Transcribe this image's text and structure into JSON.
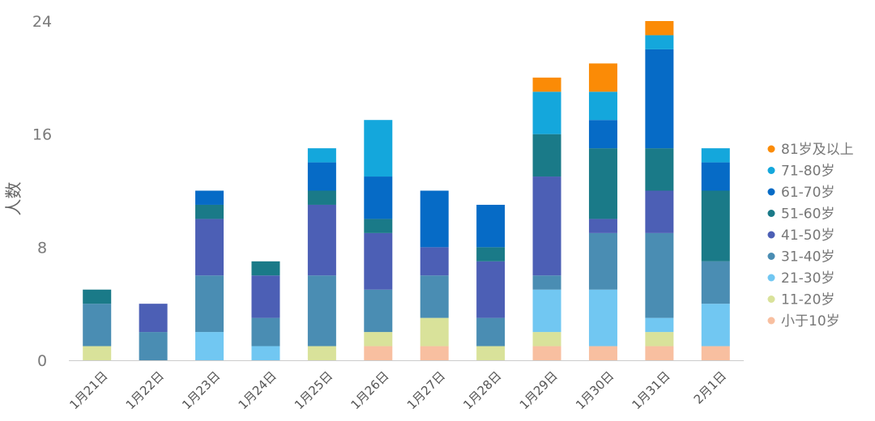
{
  "chart_data": {
    "type": "bar",
    "stacked": true,
    "title": "",
    "xlabel": "",
    "ylabel": "人数",
    "ylim": [
      0,
      24
    ],
    "yticks": [
      0,
      8,
      16,
      24
    ],
    "grid": false,
    "legend_position": "right",
    "categories": [
      "1月21日",
      "1月22日",
      "1月23日",
      "1月24日",
      "1月25日",
      "1月26日",
      "1月27日",
      "1月28日",
      "1月29日",
      "1月30日",
      "1月31日",
      "2月1日"
    ],
    "series": [
      {
        "name": "小于10岁",
        "color": "#f8bfa0",
        "values": [
          0,
          0,
          0,
          0,
          0,
          1,
          1,
          0,
          1,
          1,
          1,
          1
        ]
      },
      {
        "name": "11-20岁",
        "color": "#d9e29a",
        "values": [
          1,
          0,
          0,
          0,
          1,
          1,
          2,
          1,
          1,
          0,
          1,
          0
        ]
      },
      {
        "name": "21-30岁",
        "color": "#71c7f2",
        "values": [
          0,
          0,
          2,
          1,
          0,
          0,
          0,
          0,
          3,
          4,
          1,
          3
        ]
      },
      {
        "name": "31-40岁",
        "color": "#4a8db3",
        "values": [
          3,
          2,
          4,
          2,
          5,
          3,
          3,
          2,
          1,
          4,
          6,
          3
        ]
      },
      {
        "name": "41-50岁",
        "color": "#4c5fb5",
        "values": [
          0,
          2,
          4,
          3,
          5,
          4,
          2,
          4,
          7,
          1,
          3,
          0
        ]
      },
      {
        "name": "51-60岁",
        "color": "#1a7a88",
        "values": [
          1,
          0,
          1,
          1,
          1,
          1,
          0,
          1,
          3,
          5,
          3,
          5
        ]
      },
      {
        "name": "61-70岁",
        "color": "#066bc6",
        "values": [
          0,
          0,
          1,
          0,
          2,
          3,
          4,
          3,
          0,
          2,
          7,
          2
        ]
      },
      {
        "name": "71-80岁",
        "color": "#14a7dc",
        "values": [
          0,
          0,
          0,
          0,
          1,
          4,
          0,
          0,
          3,
          2,
          1,
          1
        ]
      },
      {
        "name": "81岁及以上",
        "color": "#fb8b06",
        "values": [
          0,
          0,
          0,
          0,
          0,
          0,
          0,
          0,
          1,
          2,
          1,
          0
        ]
      }
    ]
  }
}
